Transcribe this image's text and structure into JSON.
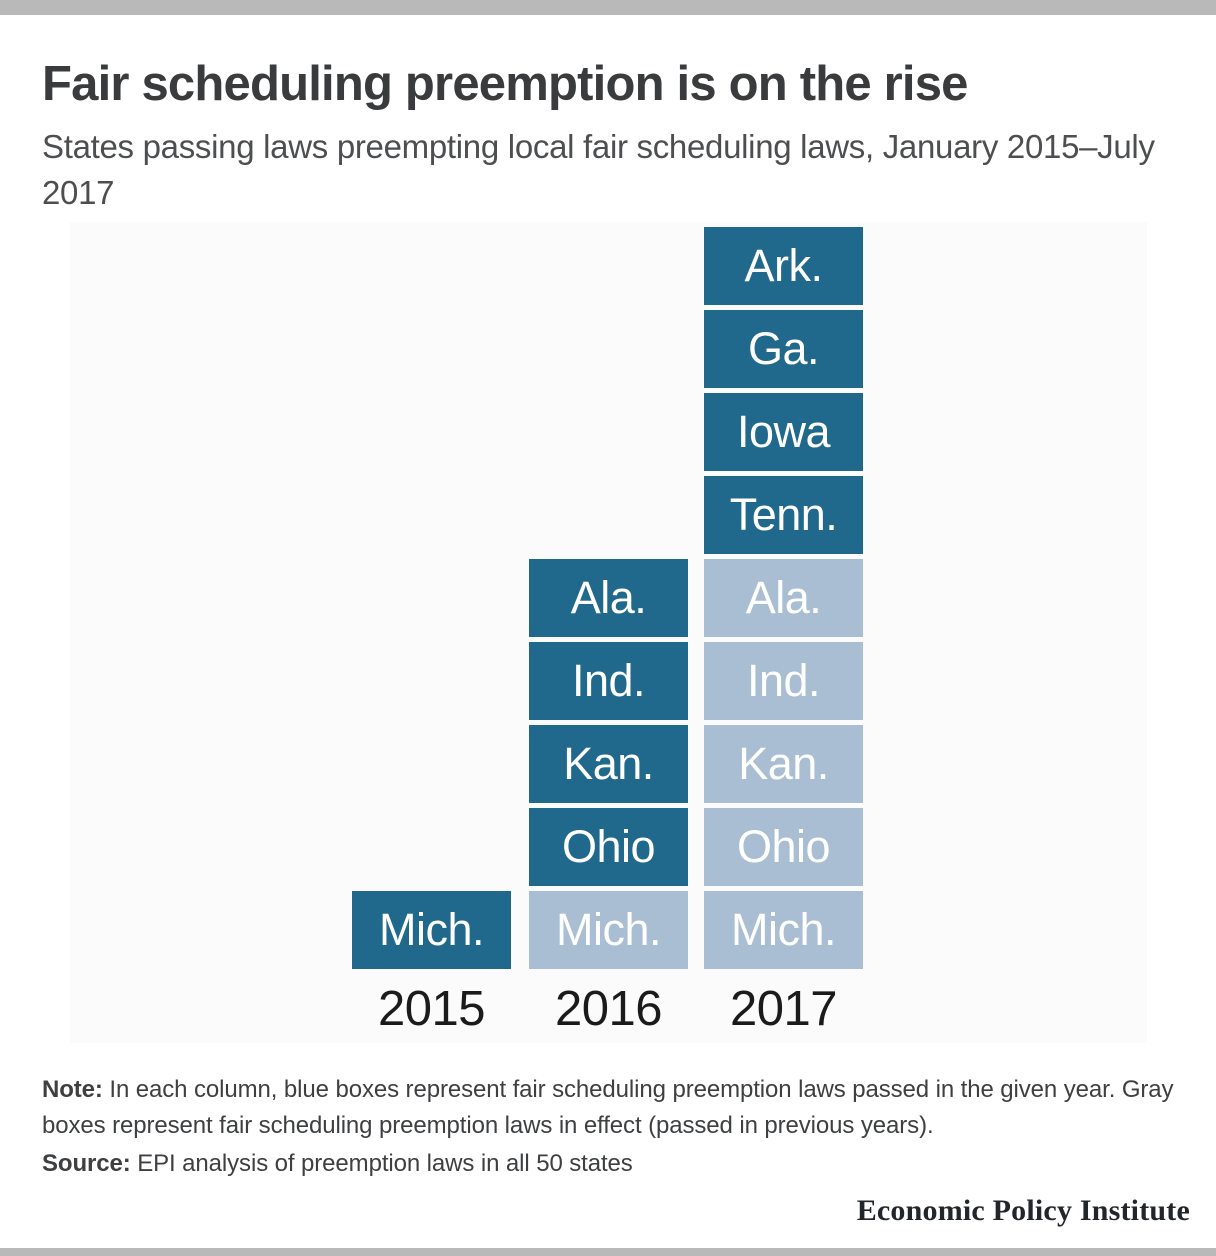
{
  "header": {
    "title": "Fair scheduling preemption is on the rise",
    "subtitle": "States passing laws preempting local fair scheduling laws, January 2015–July 2017"
  },
  "colors": {
    "passed_blue": "#20698c",
    "in_effect_gray": "#a9bed3",
    "border_bar_gray": "#b9b9b9"
  },
  "chart_data": {
    "type": "bar",
    "title": "Fair scheduling preemption is on the rise",
    "subtitle": "States passing laws preempting local fair scheduling laws, January 2015–July 2017",
    "categories": [
      "2015",
      "2016",
      "2017"
    ],
    "series": [
      {
        "name": "Laws passed in the given year (blue boxes)",
        "values": [
          1,
          4,
          4
        ]
      },
      {
        "name": "Laws in effect, passed in previous years (gray boxes)",
        "values": [
          0,
          1,
          5
        ]
      }
    ],
    "totals_per_year": [
      1,
      5,
      9
    ],
    "grid": false,
    "legend_position": "none",
    "columns": [
      {
        "year": "2015",
        "boxes": [
          {
            "label": "Mich.",
            "status": "passed"
          }
        ]
      },
      {
        "year": "2016",
        "boxes": [
          {
            "label": "Ala.",
            "status": "passed"
          },
          {
            "label": "Ind.",
            "status": "passed"
          },
          {
            "label": "Kan.",
            "status": "passed"
          },
          {
            "label": "Ohio",
            "status": "passed"
          },
          {
            "label": "Mich.",
            "status": "in_effect"
          }
        ]
      },
      {
        "year": "2017",
        "boxes": [
          {
            "label": "Ark.",
            "status": "passed"
          },
          {
            "label": "Ga.",
            "status": "passed"
          },
          {
            "label": "Iowa",
            "status": "passed"
          },
          {
            "label": "Tenn.",
            "status": "passed"
          },
          {
            "label": "Ala.",
            "status": "in_effect"
          },
          {
            "label": "Ind.",
            "status": "in_effect"
          },
          {
            "label": "Kan.",
            "status": "in_effect"
          },
          {
            "label": "Ohio",
            "status": "in_effect"
          },
          {
            "label": "Mich.",
            "status": "in_effect"
          }
        ]
      }
    ]
  },
  "note": {
    "label": "Note:",
    "text": "In each column, blue boxes represent fair scheduling preemption laws passed in the given year. Gray boxes represent fair scheduling preemption laws in effect (passed in previous years)."
  },
  "source": {
    "label": "Source:",
    "text": "EPI analysis of preemption laws in all 50 states"
  },
  "footer": {
    "brand": "Economic Policy Institute"
  }
}
